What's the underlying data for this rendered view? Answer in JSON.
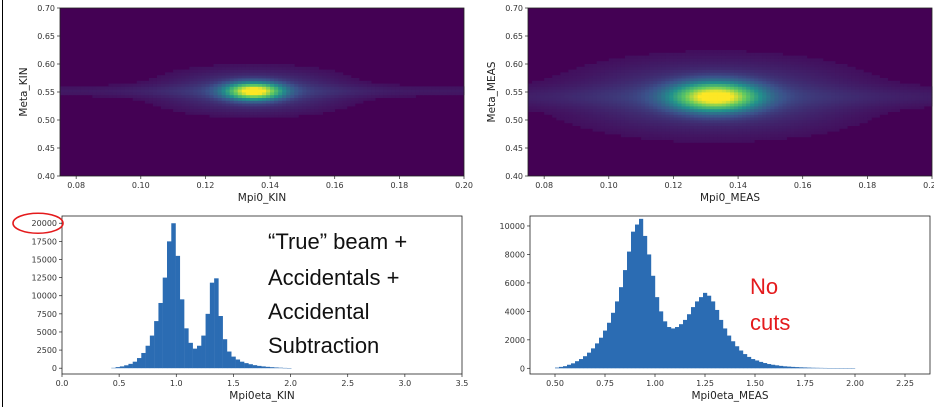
{
  "colors": {
    "bar": "#2b6cb3",
    "heat_bg": "#440154",
    "highlight": "#e41a1c"
  },
  "annotations": {
    "line1": "“True” beam +",
    "line2": "Accidentals +",
    "line3": "Accidental",
    "line4": "Subtraction",
    "no_cuts_1": "No",
    "no_cuts_2": "cuts"
  },
  "chart_data": [
    {
      "type": "heatmap",
      "xlabel": "Mpi0_KIN",
      "ylabel": "Meta_KIN",
      "xlim": [
        0.075,
        0.2
      ],
      "ylim": [
        0.4,
        0.7
      ],
      "xticks": [
        "0.08",
        "0.10",
        "0.12",
        "0.14",
        "0.16",
        "0.18",
        "0.20"
      ],
      "yticks": [
        "0.40",
        "0.45",
        "0.50",
        "0.55",
        "0.60",
        "0.65",
        "0.70"
      ],
      "peak": {
        "x": 0.135,
        "y": 0.552
      },
      "spread": {
        "x": 0.0055,
        "y": 0.0095
      },
      "colormap": "viridis"
    },
    {
      "type": "heatmap",
      "xlabel": "Mpi0_MEAS",
      "ylabel": "Meta_MEAS",
      "xlim": [
        0.075,
        0.2
      ],
      "ylim": [
        0.4,
        0.7
      ],
      "xticks": [
        "0.08",
        "0.10",
        "0.12",
        "0.14",
        "0.16",
        "0.18",
        "0.20"
      ],
      "yticks": [
        "0.40",
        "0.45",
        "0.50",
        "0.55",
        "0.60",
        "0.65",
        "0.70"
      ],
      "peak": {
        "x": 0.133,
        "y": 0.542
      },
      "spread": {
        "x": 0.0085,
        "y": 0.016
      },
      "colormap": "viridis"
    },
    {
      "type": "bar",
      "xlabel": "Mpi0eta_KIN",
      "ylabel": "",
      "xlim": [
        0.0,
        3.5
      ],
      "ylim": [
        -800,
        21000
      ],
      "xticks": [
        "0.0",
        "0.5",
        "1.0",
        "1.5",
        "2.0",
        "2.5",
        "3.0",
        "3.5"
      ],
      "yticks": [
        "0",
        "2500",
        "5000",
        "7500",
        "10000",
        "12500",
        "15000",
        "17500",
        "20000"
      ],
      "highlighted_tick": "20000",
      "bin_width": 0.0375,
      "x": [
        0.45,
        0.4875,
        0.525,
        0.5625,
        0.6,
        0.6375,
        0.675,
        0.7125,
        0.75,
        0.7875,
        0.825,
        0.8625,
        0.9,
        0.9375,
        0.975,
        1.0125,
        1.05,
        1.0875,
        1.125,
        1.1625,
        1.2,
        1.2375,
        1.275,
        1.3125,
        1.35,
        1.3875,
        1.425,
        1.4625,
        1.5,
        1.5375,
        1.575,
        1.6125,
        1.65,
        1.6875,
        1.725,
        1.7625,
        1.8,
        1.8375,
        1.875,
        1.9125,
        1.95,
        1.9875
      ],
      "values": [
        50,
        150,
        250,
        400,
        600,
        900,
        1400,
        2100,
        3100,
        4500,
        6500,
        9000,
        12500,
        17500,
        20000,
        15500,
        9500,
        5500,
        3500,
        2700,
        3100,
        4500,
        7500,
        11800,
        12400,
        7200,
        4000,
        2300,
        1600,
        1200,
        900,
        700,
        550,
        420,
        320,
        250,
        190,
        140,
        100,
        70,
        40,
        20
      ]
    },
    {
      "type": "bar",
      "xlabel": "Mpi0eta_MEAS",
      "ylabel": "",
      "xlim": [
        0.375,
        2.375
      ],
      "ylim": [
        -400,
        10700
      ],
      "xticks": [
        "0.50",
        "0.75",
        "1.00",
        "1.25",
        "1.50",
        "1.75",
        "2.00",
        "2.25"
      ],
      "yticks": [
        "0",
        "2000",
        "4000",
        "6000",
        "8000",
        "10000"
      ],
      "bin_width": 0.02,
      "x": [
        0.51,
        0.53,
        0.55,
        0.57,
        0.59,
        0.61,
        0.63,
        0.65,
        0.67,
        0.69,
        0.71,
        0.73,
        0.75,
        0.77,
        0.79,
        0.81,
        0.83,
        0.85,
        0.87,
        0.89,
        0.91,
        0.93,
        0.95,
        0.97,
        0.99,
        1.01,
        1.03,
        1.05,
        1.07,
        1.09,
        1.11,
        1.13,
        1.15,
        1.17,
        1.19,
        1.21,
        1.23,
        1.25,
        1.27,
        1.29,
        1.31,
        1.33,
        1.35,
        1.37,
        1.39,
        1.41,
        1.43,
        1.45,
        1.47,
        1.49,
        1.51,
        1.53,
        1.55,
        1.57,
        1.59,
        1.61,
        1.63,
        1.65,
        1.67,
        1.69,
        1.71,
        1.73,
        1.75,
        1.77,
        1.79,
        1.81,
        1.83,
        1.85,
        1.87,
        1.89,
        1.91,
        1.93,
        1.95,
        1.97,
        1.99
      ],
      "values": [
        50,
        100,
        150,
        250,
        350,
        500,
        650,
        850,
        1100,
        1400,
        1750,
        2150,
        2650,
        3200,
        3900,
        4700,
        5700,
        6900,
        8200,
        9600,
        10100,
        10500,
        9300,
        8000,
        6500,
        5000,
        4000,
        3300,
        2900,
        2800,
        2900,
        3100,
        3400,
        3800,
        4300,
        4700,
        5000,
        5300,
        5100,
        4700,
        4100,
        3400,
        2800,
        2300,
        1900,
        1550,
        1250,
        1000,
        800,
        650,
        550,
        450,
        370,
        300,
        250,
        210,
        170,
        140,
        120,
        100,
        85,
        70,
        60,
        50,
        40,
        35,
        30,
        25,
        20,
        15,
        12,
        10,
        8,
        5,
        3
      ]
    }
  ]
}
